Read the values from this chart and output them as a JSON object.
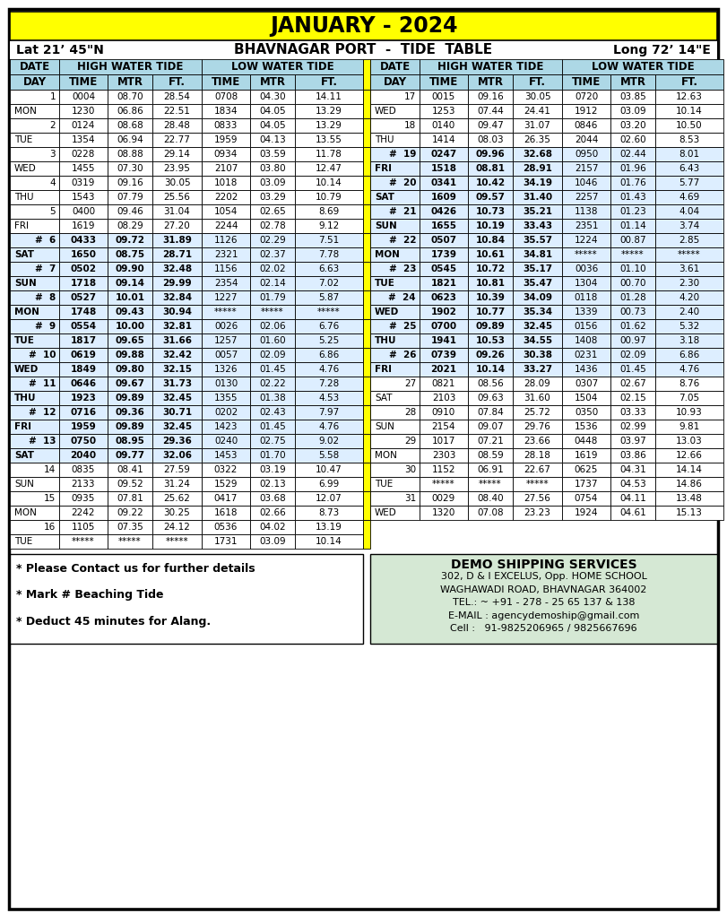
{
  "title": "JANUARY - 2024",
  "subtitle_left": "Lat 21’ 45\"N",
  "subtitle_center": "BHAVNAGAR PORT  -  TIDE  TABLE",
  "subtitle_right": "Long 72’ 14\"E",
  "rows_left": [
    [
      "1",
      "MON",
      "0004",
      "08.70",
      "28.54",
      "0708",
      "04.30",
      "14.11",
      "1230",
      "06.86",
      "22.51",
      "1834",
      "04.05",
      "13.29"
    ],
    [
      "2",
      "TUE",
      "0124",
      "08.68",
      "28.48",
      "0833",
      "04.05",
      "13.29",
      "1354",
      "06.94",
      "22.77",
      "1959",
      "04.13",
      "13.55"
    ],
    [
      "3",
      "WED",
      "0228",
      "08.88",
      "29.14",
      "0934",
      "03.59",
      "11.78",
      "1455",
      "07.30",
      "23.95",
      "2107",
      "03.80",
      "12.47"
    ],
    [
      "4",
      "THU",
      "0319",
      "09.16",
      "30.05",
      "1018",
      "03.09",
      "10.14",
      "1543",
      "07.79",
      "25.56",
      "2202",
      "03.29",
      "10.79"
    ],
    [
      "5",
      "FRI",
      "0400",
      "09.46",
      "31.04",
      "1054",
      "02.65",
      "8.69",
      "1619",
      "08.29",
      "27.20",
      "2244",
      "02.78",
      "9.12"
    ],
    [
      "#  6",
      "SAT",
      "0433",
      "09.72",
      "31.89",
      "1126",
      "02.29",
      "7.51",
      "1650",
      "08.75",
      "28.71",
      "2321",
      "02.37",
      "7.78"
    ],
    [
      "#  7",
      "SUN",
      "0502",
      "09.90",
      "32.48",
      "1156",
      "02.02",
      "6.63",
      "1718",
      "09.14",
      "29.99",
      "2354",
      "02.14",
      "7.02"
    ],
    [
      "#  8",
      "MON",
      "0527",
      "10.01",
      "32.84",
      "1227",
      "01.79",
      "5.87",
      "1748",
      "09.43",
      "30.94",
      "*****",
      "*****",
      "*****"
    ],
    [
      "#  9",
      "TUE",
      "0554",
      "10.00",
      "32.81",
      "0026",
      "02.06",
      "6.76",
      "1817",
      "09.65",
      "31.66",
      "1257",
      "01.60",
      "5.25"
    ],
    [
      "# 10",
      "WED",
      "0619",
      "09.88",
      "32.42",
      "0057",
      "02.09",
      "6.86",
      "1849",
      "09.80",
      "32.15",
      "1326",
      "01.45",
      "4.76"
    ],
    [
      "# 11",
      "THU",
      "0646",
      "09.67",
      "31.73",
      "0130",
      "02.22",
      "7.28",
      "1923",
      "09.89",
      "32.45",
      "1355",
      "01.38",
      "4.53"
    ],
    [
      "# 12",
      "FRI",
      "0716",
      "09.36",
      "30.71",
      "0202",
      "02.43",
      "7.97",
      "1959",
      "09.89",
      "32.45",
      "1423",
      "01.45",
      "4.76"
    ],
    [
      "# 13",
      "SAT",
      "0750",
      "08.95",
      "29.36",
      "0240",
      "02.75",
      "9.02",
      "2040",
      "09.77",
      "32.06",
      "1453",
      "01.70",
      "5.58"
    ],
    [
      "14",
      "SUN",
      "0835",
      "08.41",
      "27.59",
      "0322",
      "03.19",
      "10.47",
      "2133",
      "09.52",
      "31.24",
      "1529",
      "02.13",
      "6.99"
    ],
    [
      "15",
      "MON",
      "0935",
      "07.81",
      "25.62",
      "0417",
      "03.68",
      "12.07",
      "2242",
      "09.22",
      "30.25",
      "1618",
      "02.66",
      "8.73"
    ],
    [
      "16",
      "TUE",
      "1105",
      "07.35",
      "24.12",
      "0536",
      "04.02",
      "13.19",
      "*****",
      "*****",
      "*****",
      "1731",
      "03.09",
      "10.14"
    ]
  ],
  "rows_right": [
    [
      "17",
      "WED",
      "0015",
      "09.16",
      "30.05",
      "0720",
      "03.85",
      "12.63",
      "1253",
      "07.44",
      "24.41",
      "1912",
      "03.09",
      "10.14"
    ],
    [
      "18",
      "THU",
      "0140",
      "09.47",
      "31.07",
      "0846",
      "03.20",
      "10.50",
      "1414",
      "08.03",
      "26.35",
      "2044",
      "02.60",
      "8.53"
    ],
    [
      "# 19",
      "FRI",
      "0247",
      "09.96",
      "32.68",
      "0950",
      "02.44",
      "8.01",
      "1518",
      "08.81",
      "28.91",
      "2157",
      "01.96",
      "6.43"
    ],
    [
      "# 20",
      "SAT",
      "0341",
      "10.42",
      "34.19",
      "1046",
      "01.76",
      "5.77",
      "1609",
      "09.57",
      "31.40",
      "2257",
      "01.43",
      "4.69"
    ],
    [
      "# 21",
      "SUN",
      "0426",
      "10.73",
      "35.21",
      "1138",
      "01.23",
      "4.04",
      "1655",
      "10.19",
      "33.43",
      "2351",
      "01.14",
      "3.74"
    ],
    [
      "# 22",
      "MON",
      "0507",
      "10.84",
      "35.57",
      "1224",
      "00.87",
      "2.85",
      "1739",
      "10.61",
      "34.81",
      "*****",
      "*****",
      "*****"
    ],
    [
      "# 23",
      "TUE",
      "0545",
      "10.72",
      "35.17",
      "0036",
      "01.10",
      "3.61",
      "1821",
      "10.81",
      "35.47",
      "1304",
      "00.70",
      "2.30"
    ],
    [
      "# 24",
      "WED",
      "0623",
      "10.39",
      "34.09",
      "0118",
      "01.28",
      "4.20",
      "1902",
      "10.77",
      "35.34",
      "1339",
      "00.73",
      "2.40"
    ],
    [
      "# 25",
      "THU",
      "0700",
      "09.89",
      "32.45",
      "0156",
      "01.62",
      "5.32",
      "1941",
      "10.53",
      "34.55",
      "1408",
      "00.97",
      "3.18"
    ],
    [
      "# 26",
      "FRI",
      "0739",
      "09.26",
      "30.38",
      "0231",
      "02.09",
      "6.86",
      "2021",
      "10.14",
      "33.27",
      "1436",
      "01.45",
      "4.76"
    ],
    [
      "27",
      "SAT",
      "0821",
      "08.56",
      "28.09",
      "0307",
      "02.67",
      "8.76",
      "2103",
      "09.63",
      "31.60",
      "1504",
      "02.15",
      "7.05"
    ],
    [
      "28",
      "SUN",
      "0910",
      "07.84",
      "25.72",
      "0350",
      "03.33",
      "10.93",
      "2154",
      "09.07",
      "29.76",
      "1536",
      "02.99",
      "9.81"
    ],
    [
      "29",
      "MON",
      "1017",
      "07.21",
      "23.66",
      "0448",
      "03.97",
      "13.03",
      "2303",
      "08.59",
      "28.18",
      "1619",
      "03.86",
      "12.66"
    ],
    [
      "30",
      "TUE",
      "1152",
      "06.91",
      "22.67",
      "0625",
      "04.31",
      "14.14",
      "*****",
      "*****",
      "*****",
      "1737",
      "04.53",
      "14.86"
    ],
    [
      "31",
      "WED",
      "0029",
      "08.40",
      "27.56",
      "0754",
      "04.11",
      "13.48",
      "1320",
      "07.08",
      "23.23",
      "1924",
      "04.61",
      "15.13"
    ]
  ],
  "beaching_left": [
    6,
    7,
    8,
    9,
    10,
    11,
    12,
    13
  ],
  "beaching_right": [
    19,
    20,
    21,
    22,
    23,
    24,
    25,
    26
  ],
  "footer_notes": [
    "* Please Contact us for further details",
    "* Mark # Beaching Tide",
    "* Deduct 45 minutes for Alang."
  ],
  "company_name": "DEMO SHIPPING SERVICES",
  "company_lines": [
    "302, D & I EXCELUS, Opp. HOME SCHOOL",
    "WAGHAWADI ROAD, BHAVNAGAR 364002",
    "TEL.: ~ +91 - 278 - 25 65 137 & 138",
    "E-MAIL : agencydemoship@gmail.com",
    "Cell :   91-9825206965 / 9825667696"
  ],
  "yellow": "#FFFF00",
  "hdr_blue": "#ADD8E6",
  "beach_bg": "#DDEEFF",
  "white": "#FFFFFF",
  "co_green": "#D5E8D4"
}
